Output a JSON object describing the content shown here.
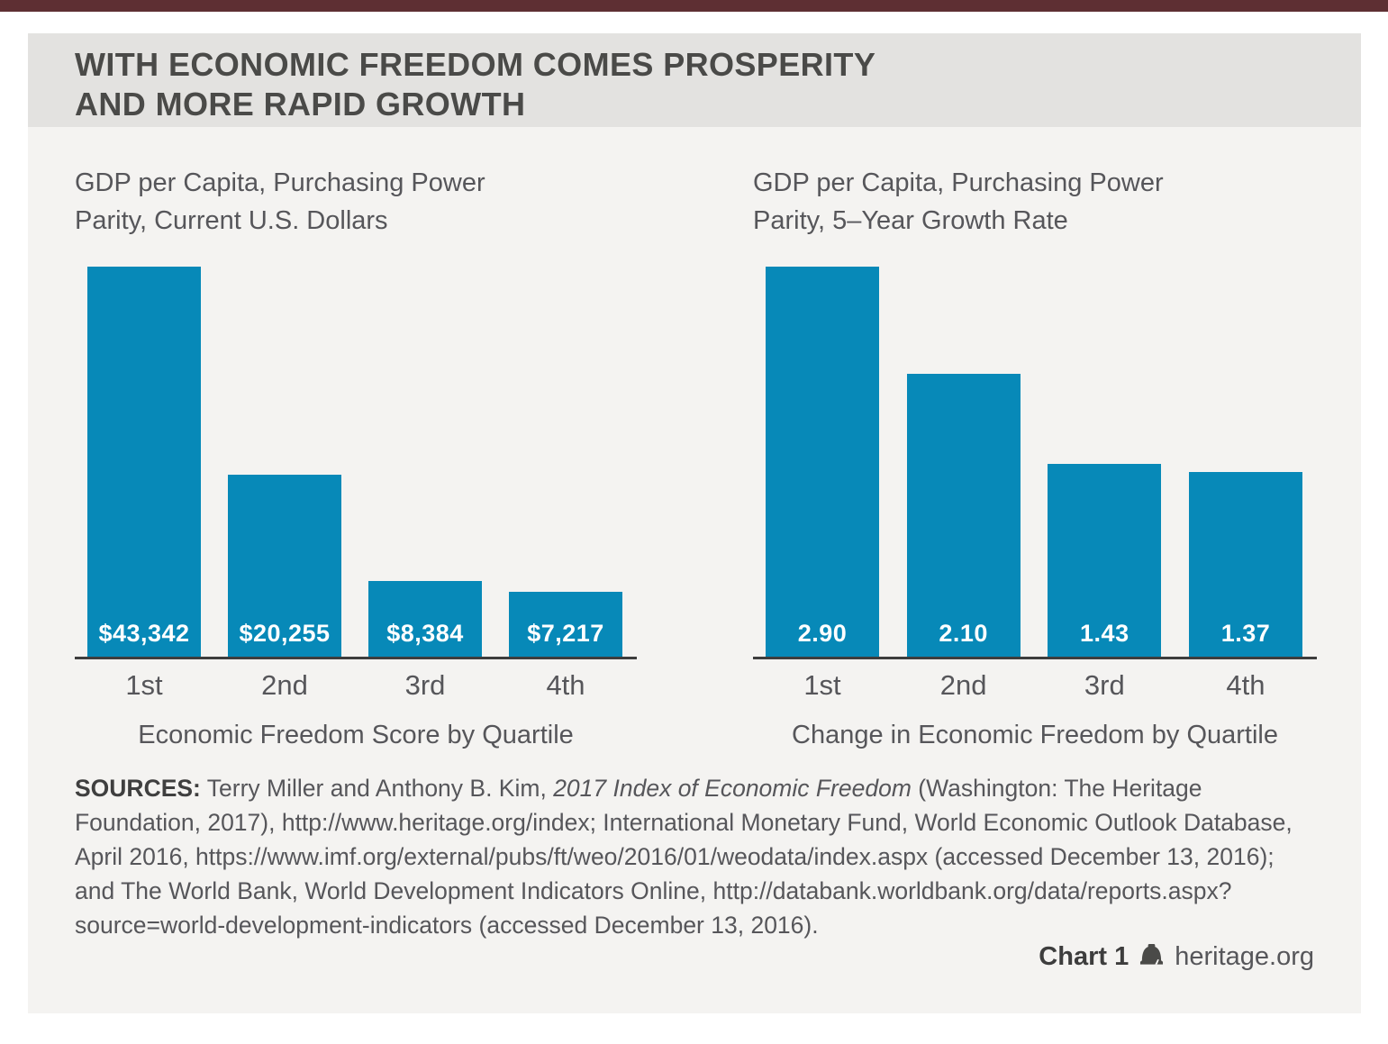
{
  "colors": {
    "top_bar": "#5e2f33",
    "bar_fill": "#0789b8",
    "title_band_bg": "#e3e2e0",
    "body_bg": "#f4f3f1",
    "axis_line": "#3d3d3d",
    "text_gray": "#56565a"
  },
  "header": {
    "title_line1": "WITH ECONOMIC FREEDOM COMES PROSPERITY",
    "title_line2": "AND MORE RAPID GROWTH"
  },
  "chart_data": [
    {
      "type": "bar",
      "title": "GDP per Capita, Purchasing Power Parity, Current U.S. Dollars",
      "title_lines": [
        "GDP per Capita, Purchasing Power",
        "Parity, Current U.S. Dollars"
      ],
      "categories": [
        "1st",
        "2nd",
        "3rd",
        "4th"
      ],
      "values": [
        43342,
        20255,
        8384,
        7217
      ],
      "value_labels": [
        "$43,342",
        "$20,255",
        "$8,384",
        "$7,217"
      ],
      "xlabel": "Economic Freedom Score by Quartile",
      "ylabel": "",
      "ylim": [
        0,
        43342
      ],
      "grid": false,
      "legend": "none",
      "value_label_position": "inside-bottom"
    },
    {
      "type": "bar",
      "title": "GDP per Capita, Purchasing Power Parity, 5–Year Growth Rate",
      "title_lines": [
        "GDP per Capita, Purchasing Power",
        "Parity, 5–Year Growth Rate"
      ],
      "categories": [
        "1st",
        "2nd",
        "3rd",
        "4th"
      ],
      "values": [
        2.9,
        2.1,
        1.43,
        1.37
      ],
      "value_labels": [
        "2.90",
        "2.10",
        "1.43",
        "1.37"
      ],
      "xlabel": "Change in Economic Freedom by Quartile",
      "ylabel": "",
      "ylim": [
        0,
        2.9
      ],
      "grid": false,
      "legend": "none",
      "value_label_position": "inside-bottom"
    }
  ],
  "sources": {
    "label": "SOURCES:",
    "before_italic": "Terry Miller and Anthony B. Kim,",
    "italic": "2017 Index of Economic Freedom",
    "after_italic": "(Washington: The Heritage Foundation, 2017), http://www.heritage.org/index; International Monetary Fund, World Economic Outlook Database, April 2016, https://www.imf.org/external/pubs/ft/weo/2016/01/weodata/index.aspx (accessed December 13, 2016); and The World Bank, World Development Indicators Online, http://databank.worldbank.org/data/reports.aspx?source=world-development-indicators (accessed December 13, 2016)."
  },
  "footer": {
    "chart_label": "Chart 1",
    "site": "heritage.org",
    "icon": "liberty-bell-icon"
  }
}
